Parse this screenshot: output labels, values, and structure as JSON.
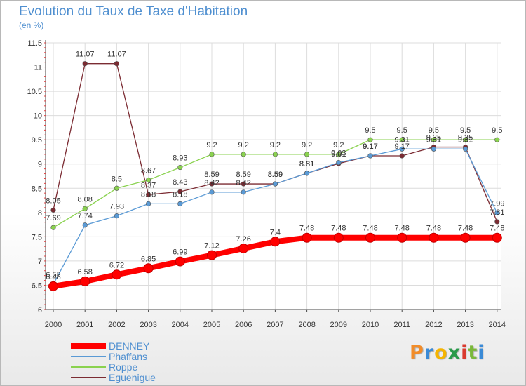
{
  "header": {
    "title": "Evolution du Taux de Taxe d'Habitation",
    "subtitle": "(en %)"
  },
  "logo": {
    "text": "Proxiti",
    "colors": [
      "#f28c28",
      "#3a8ad6",
      "#f5b400",
      "#2a9a4a",
      "#d93a2f",
      "#7ab83a",
      "#3a8ad6"
    ]
  },
  "chart_data": {
    "type": "line",
    "x": [
      2000,
      2001,
      2002,
      2003,
      2004,
      2005,
      2006,
      2007,
      2008,
      2009,
      2010,
      2011,
      2012,
      2013,
      2014
    ],
    "ylim": [
      6,
      11.5
    ],
    "yticks": [
      6,
      6.5,
      7,
      7.5,
      8,
      8.5,
      9,
      9.5,
      10,
      10.5,
      11,
      11.5
    ],
    "ytick_labels": [
      "6",
      "6.5",
      "7",
      "7.5",
      "8",
      "8.5",
      "9",
      "9.5",
      "10",
      "10.5",
      "11",
      "11.5"
    ],
    "grid": true,
    "legend_position": "bottom-left",
    "series": [
      {
        "name": "DENNEY",
        "color": "#ff0000",
        "values": [
          6.48,
          6.58,
          6.72,
          6.85,
          6.99,
          7.12,
          7.26,
          7.4,
          7.48,
          7.48,
          7.48,
          7.48,
          7.48,
          7.48,
          7.48
        ],
        "labels": [
          "6.48",
          "6.58",
          "6.72",
          "6.85",
          "6.99",
          "7.12",
          "7.26",
          "7.4",
          "7.48",
          "7.48",
          "7.48",
          "7.48",
          "7.48",
          "7.48",
          "7.48"
        ]
      },
      {
        "name": "Phaffans",
        "color": "#5a9ad5",
        "values": [
          6.52,
          7.74,
          7.93,
          8.18,
          8.18,
          8.42,
          8.42,
          8.59,
          8.81,
          9.03,
          9.17,
          9.31,
          9.31,
          9.31,
          7.99
        ],
        "labels": [
          "6.52",
          "7.74",
          "7.93",
          "8.18",
          "8.18",
          "8.42",
          "8.42",
          "8.59",
          "8.81",
          "9.03",
          "9.17",
          "9.31",
          "9.31",
          "9.31",
          "7.99"
        ]
      },
      {
        "name": "Roppe",
        "color": "#8ad24f",
        "values": [
          7.69,
          8.08,
          8.5,
          8.67,
          8.93,
          9.2,
          9.2,
          9.2,
          9.2,
          9.2,
          9.5,
          9.5,
          9.5,
          9.5,
          9.5
        ],
        "labels": [
          "7.69",
          "8.08",
          "8.5",
          "8.67",
          "8.93",
          "9.2",
          "9.2",
          "9.2",
          "9.2",
          "9.2",
          "9.5",
          "9.5",
          "9.5",
          "9.5",
          "9.5"
        ]
      },
      {
        "name": "Eguenigue",
        "color": "#7b2b32",
        "values": [
          8.05,
          11.07,
          11.07,
          8.37,
          8.43,
          8.59,
          8.59,
          8.59,
          8.81,
          9.01,
          9.17,
          9.17,
          9.35,
          9.35,
          7.81
        ],
        "labels": [
          "8.05",
          "11.07",
          "11.07",
          "8.37",
          "8.43",
          "8.59",
          "8.59",
          "8.59",
          "8.81",
          "9.01",
          "9.17",
          "9.17",
          "9.35",
          "9.35",
          "7.81"
        ]
      }
    ]
  }
}
